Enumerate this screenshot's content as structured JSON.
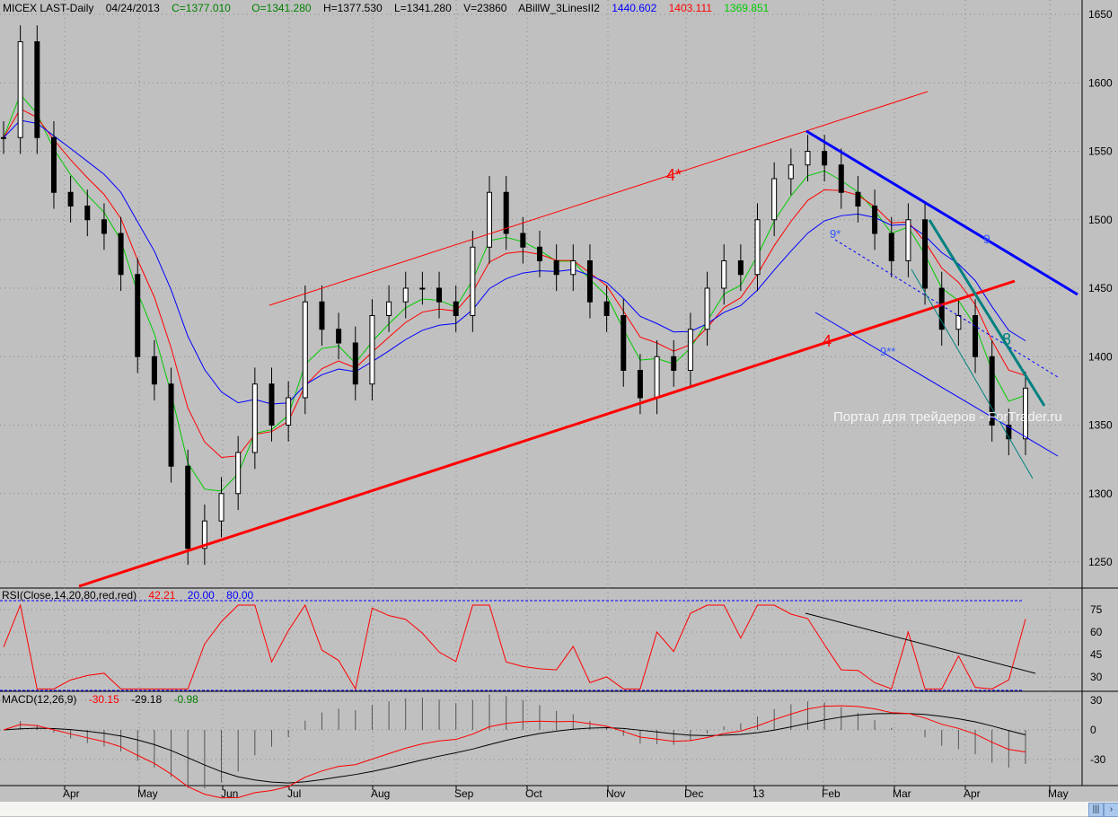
{
  "header": {
    "symbol": "MICEX LAST-Daily",
    "date": "04/24/2013",
    "close": "C=1377.010",
    "open": "O=1341.280",
    "high": "H=1377.530",
    "low": "L=1341.280",
    "volume": "V=23860",
    "indicator": "ABillW_3LinesII2",
    "ma_blue": "1440.602",
    "ma_red": "1403.111",
    "ma_green": "1369.851"
  },
  "watermark": "Портал для трейдеров - ForTrader.ru",
  "rsi_header": {
    "label": "RSI(Close,14,20,80,red,red)",
    "value": "42.21",
    "low": "20.00",
    "high": "80.00"
  },
  "macd_header": {
    "label": "MACD(12,26,9)",
    "macd": "-30.15",
    "signal": "-29.18",
    "hist": "-0.98"
  },
  "annotations": {
    "a1": "4*",
    "a2": "4",
    "a3": "9",
    "a4": "9*",
    "a5": "9**",
    "a6": "8"
  },
  "colors": {
    "bg": "#c0c0c0",
    "up": "#ffffff",
    "down": "#000000",
    "ma_green": "#00cc00",
    "ma_red": "#ff0000",
    "ma_blue": "#0000ff",
    "teal": "#008080"
  },
  "chart_data": {
    "type": "candlestick",
    "price_axis": {
      "ticks": [
        1250,
        1300,
        1350,
        1400,
        1450,
        1500,
        1550,
        1600,
        1650
      ],
      "ylim": [
        1225,
        1660
      ]
    },
    "rsi_axis": {
      "ticks": [
        30,
        45,
        60,
        75
      ]
    },
    "macd_axis": {
      "ticks": [
        30,
        0,
        -30
      ]
    },
    "x_ticks": [
      "Apr",
      "May",
      "Jun",
      "Jul",
      "Aug",
      "Sep",
      "Oct",
      "Nov",
      "Dec",
      "13",
      "Feb",
      "Mar",
      "Apr",
      "May"
    ],
    "closes": [
      1560,
      1630,
      1560,
      1520,
      1510,
      1500,
      1490,
      1460,
      1400,
      1380,
      1320,
      1260,
      1280,
      1300,
      1330,
      1380,
      1350,
      1370,
      1440,
      1420,
      1410,
      1380,
      1430,
      1440,
      1450,
      1450,
      1440,
      1430,
      1480,
      1520,
      1490,
      1480,
      1470,
      1460,
      1470,
      1440,
      1430,
      1390,
      1370,
      1400,
      1390,
      1420,
      1450,
      1470,
      1460,
      1500,
      1530,
      1540,
      1550,
      1540,
      1520,
      1510,
      1490,
      1470,
      1500,
      1450,
      1420,
      1430,
      1400,
      1350,
      1340,
      1377
    ]
  }
}
